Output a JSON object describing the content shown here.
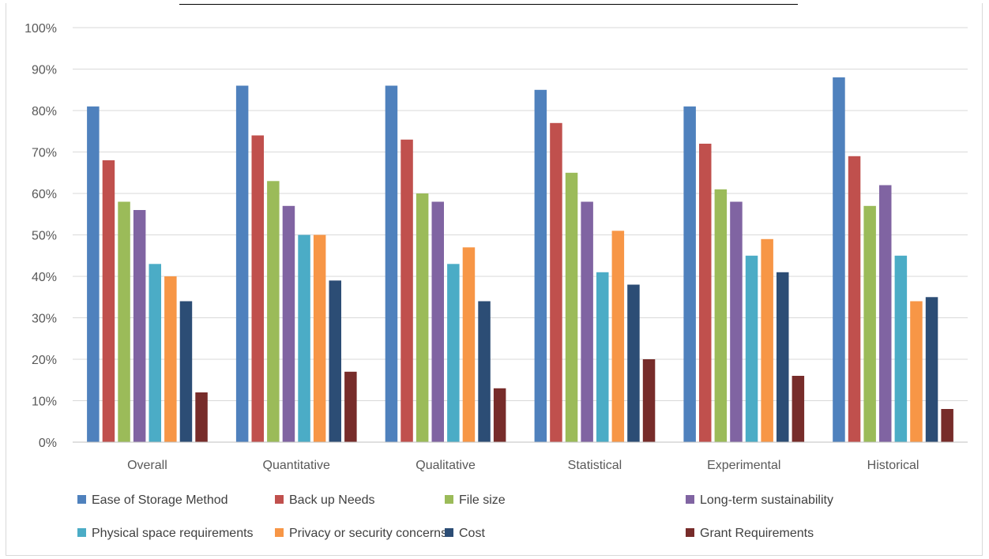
{
  "chart_data": {
    "type": "bar",
    "title": "",
    "xlabel": "",
    "ylabel": "",
    "ylim": [
      0,
      100
    ],
    "ytick_step": 10,
    "ytick_suffix": "%",
    "grid": true,
    "legend_position": "bottom",
    "categories": [
      "Overall",
      "Quantitative",
      "Qualitative",
      "Statistical",
      "Experimental",
      "Historical"
    ],
    "series": [
      {
        "name": "Ease of Storage Method",
        "color": "#4f81bd",
        "values": [
          81,
          86,
          86,
          85,
          81,
          88
        ]
      },
      {
        "name": "Back up Needs",
        "color": "#c0504d",
        "values": [
          68,
          74,
          73,
          77,
          72,
          69
        ]
      },
      {
        "name": "File size",
        "color": "#9bbb59",
        "values": [
          58,
          63,
          60,
          65,
          61,
          57
        ]
      },
      {
        "name": "Long-term sustainability",
        "color": "#8064a2",
        "values": [
          56,
          57,
          58,
          58,
          58,
          62
        ]
      },
      {
        "name": "Physical space requirements",
        "color": "#4bacc6",
        "values": [
          43,
          50,
          43,
          41,
          45,
          45
        ]
      },
      {
        "name": "Privacy or security concerns",
        "color": "#f79646",
        "values": [
          40,
          50,
          47,
          51,
          49,
          34
        ]
      },
      {
        "name": "Cost",
        "color": "#2c4d75",
        "values": [
          34,
          39,
          34,
          38,
          41,
          35
        ]
      },
      {
        "name": "Grant Requirements",
        "color": "#772c2a",
        "values": [
          12,
          17,
          13,
          20,
          16,
          8
        ]
      }
    ]
  }
}
